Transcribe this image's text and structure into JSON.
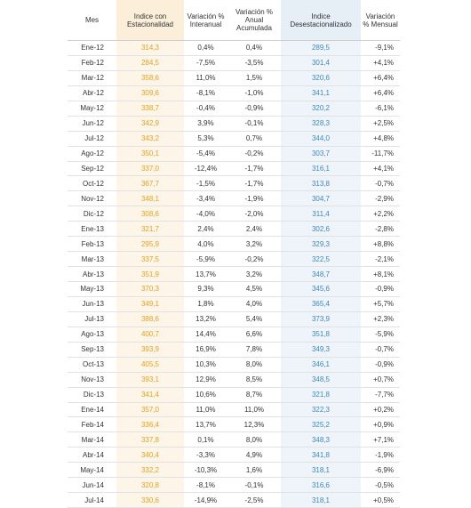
{
  "headers": {
    "mes": "Mes",
    "indice": "Indice con Estacionalidad",
    "var_interanual": "Variación % Interanual",
    "var_acumulada": "Variación % Anual Acumulada",
    "indice_desest": "Indice Desestacionalizado",
    "var_mensual": "Variación % Mensual"
  },
  "rows": [
    {
      "mes": "Ene-12",
      "indice": "314,3",
      "vi": "0,4%",
      "va": "0,4%",
      "des": "289,5",
      "vm": "-9,1%"
    },
    {
      "mes": "Feb-12",
      "indice": "284,5",
      "vi": "-7,5%",
      "va": "-3,5%",
      "des": "301,4",
      "vm": "+4,1%"
    },
    {
      "mes": "Mar-12",
      "indice": "358,6",
      "vi": "11,0%",
      "va": "1,5%",
      "des": "320,6",
      "vm": "+6,4%"
    },
    {
      "mes": "Abr-12",
      "indice": "309,6",
      "vi": "-8,1%",
      "va": "-1,0%",
      "des": "341,1",
      "vm": "+6,4%"
    },
    {
      "mes": "May-12",
      "indice": "338,7",
      "vi": "-0,4%",
      "va": "-0,9%",
      "des": "320,2",
      "vm": "-6,1%"
    },
    {
      "mes": "Jun-12",
      "indice": "342,9",
      "vi": "3,9%",
      "va": "-0,1%",
      "des": "328,3",
      "vm": "+2,5%"
    },
    {
      "mes": "Jul-12",
      "indice": "343,2",
      "vi": "5,3%",
      "va": "0,7%",
      "des": "344,0",
      "vm": "+4,8%"
    },
    {
      "mes": "Ago-12",
      "indice": "350,1",
      "vi": "-5,4%",
      "va": "-0,2%",
      "des": "303,7",
      "vm": "-11,7%"
    },
    {
      "mes": "Sep-12",
      "indice": "337,0",
      "vi": "-12,4%",
      "va": "-1,7%",
      "des": "316,1",
      "vm": "+4,1%"
    },
    {
      "mes": "Oct-12",
      "indice": "367,7",
      "vi": "-1,5%",
      "va": "-1,7%",
      "des": "313,8",
      "vm": "-0,7%"
    },
    {
      "mes": "Nov-12",
      "indice": "348,1",
      "vi": "-3,4%",
      "va": "-1,9%",
      "des": "304,7",
      "vm": "-2,9%"
    },
    {
      "mes": "Dic-12",
      "indice": "308,6",
      "vi": "-4,0%",
      "va": "-2,0%",
      "des": "311,4",
      "vm": "+2,2%"
    },
    {
      "mes": "Ene-13",
      "indice": "321,7",
      "vi": "2,4%",
      "va": "2,4%",
      "des": "302,6",
      "vm": "-2,8%"
    },
    {
      "mes": "Feb-13",
      "indice": "295,9",
      "vi": "4,0%",
      "va": "3,2%",
      "des": "329,3",
      "vm": "+8,8%"
    },
    {
      "mes": "Mar-13",
      "indice": "337,5",
      "vi": "-5,9%",
      "va": "-0,2%",
      "des": "322,5",
      "vm": "-2,1%"
    },
    {
      "mes": "Abr-13",
      "indice": "351,9",
      "vi": "13,7%",
      "va": "3,2%",
      "des": "348,7",
      "vm": "+8,1%"
    },
    {
      "mes": "May-13",
      "indice": "370,3",
      "vi": "9,3%",
      "va": "4,5%",
      "des": "345,6",
      "vm": "-0,9%"
    },
    {
      "mes": "Jun-13",
      "indice": "349,1",
      "vi": "1,8%",
      "va": "4,0%",
      "des": "365,4",
      "vm": "+5,7%"
    },
    {
      "mes": "Jul-13",
      "indice": "388,6",
      "vi": "13,2%",
      "va": "5,4%",
      "des": "373,9",
      "vm": "+2,3%"
    },
    {
      "mes": "Ago-13",
      "indice": "400,7",
      "vi": "14,4%",
      "va": "6,6%",
      "des": "351,8",
      "vm": "-5,9%"
    },
    {
      "mes": "Sep-13",
      "indice": "393,9",
      "vi": "16,9%",
      "va": "7,8%",
      "des": "349,3",
      "vm": "-0,7%"
    },
    {
      "mes": "Oct-13",
      "indice": "405,5",
      "vi": "10,3%",
      "va": "8,0%",
      "des": "346,1",
      "vm": "-0,9%"
    },
    {
      "mes": "Nov-13",
      "indice": "393,1",
      "vi": "12,9%",
      "va": "8,5%",
      "des": "348,5",
      "vm": "+0,7%"
    },
    {
      "mes": "Dic-13",
      "indice": "341,4",
      "vi": "10,6%",
      "va": "8,7%",
      "des": "321,8",
      "vm": "-7,7%"
    },
    {
      "mes": "Ene-14",
      "indice": "357,0",
      "vi": "11,0%",
      "va": "11,0%",
      "des": "322,3",
      "vm": "+0,2%"
    },
    {
      "mes": "Feb-14",
      "indice": "336,4",
      "vi": "13,7%",
      "va": "12,3%",
      "des": "325,2",
      "vm": "+0,9%"
    },
    {
      "mes": "Mar-14",
      "indice": "337,8",
      "vi": "0,1%",
      "va": "8,0%",
      "des": "348,3",
      "vm": "+7,1%"
    },
    {
      "mes": "Abr-14",
      "indice": "340,4",
      "vi": "-3,3%",
      "va": "4,9%",
      "des": "341,8",
      "vm": "-1,9%"
    },
    {
      "mes": "May-14",
      "indice": "332,2",
      "vi": "-10,3%",
      "va": "1,6%",
      "des": "318,1",
      "vm": "-6,9%"
    },
    {
      "mes": "Jun-14",
      "indice": "320,8",
      "vi": "-8,1%",
      "va": "-0,1%",
      "des": "316,6",
      "vm": "-0,5%"
    },
    {
      "mes": "Jul-14",
      "indice": "330,6",
      "vi": "-14,9%",
      "va": "-2,5%",
      "des": "318,1",
      "vm": "+0,5%"
    }
  ]
}
